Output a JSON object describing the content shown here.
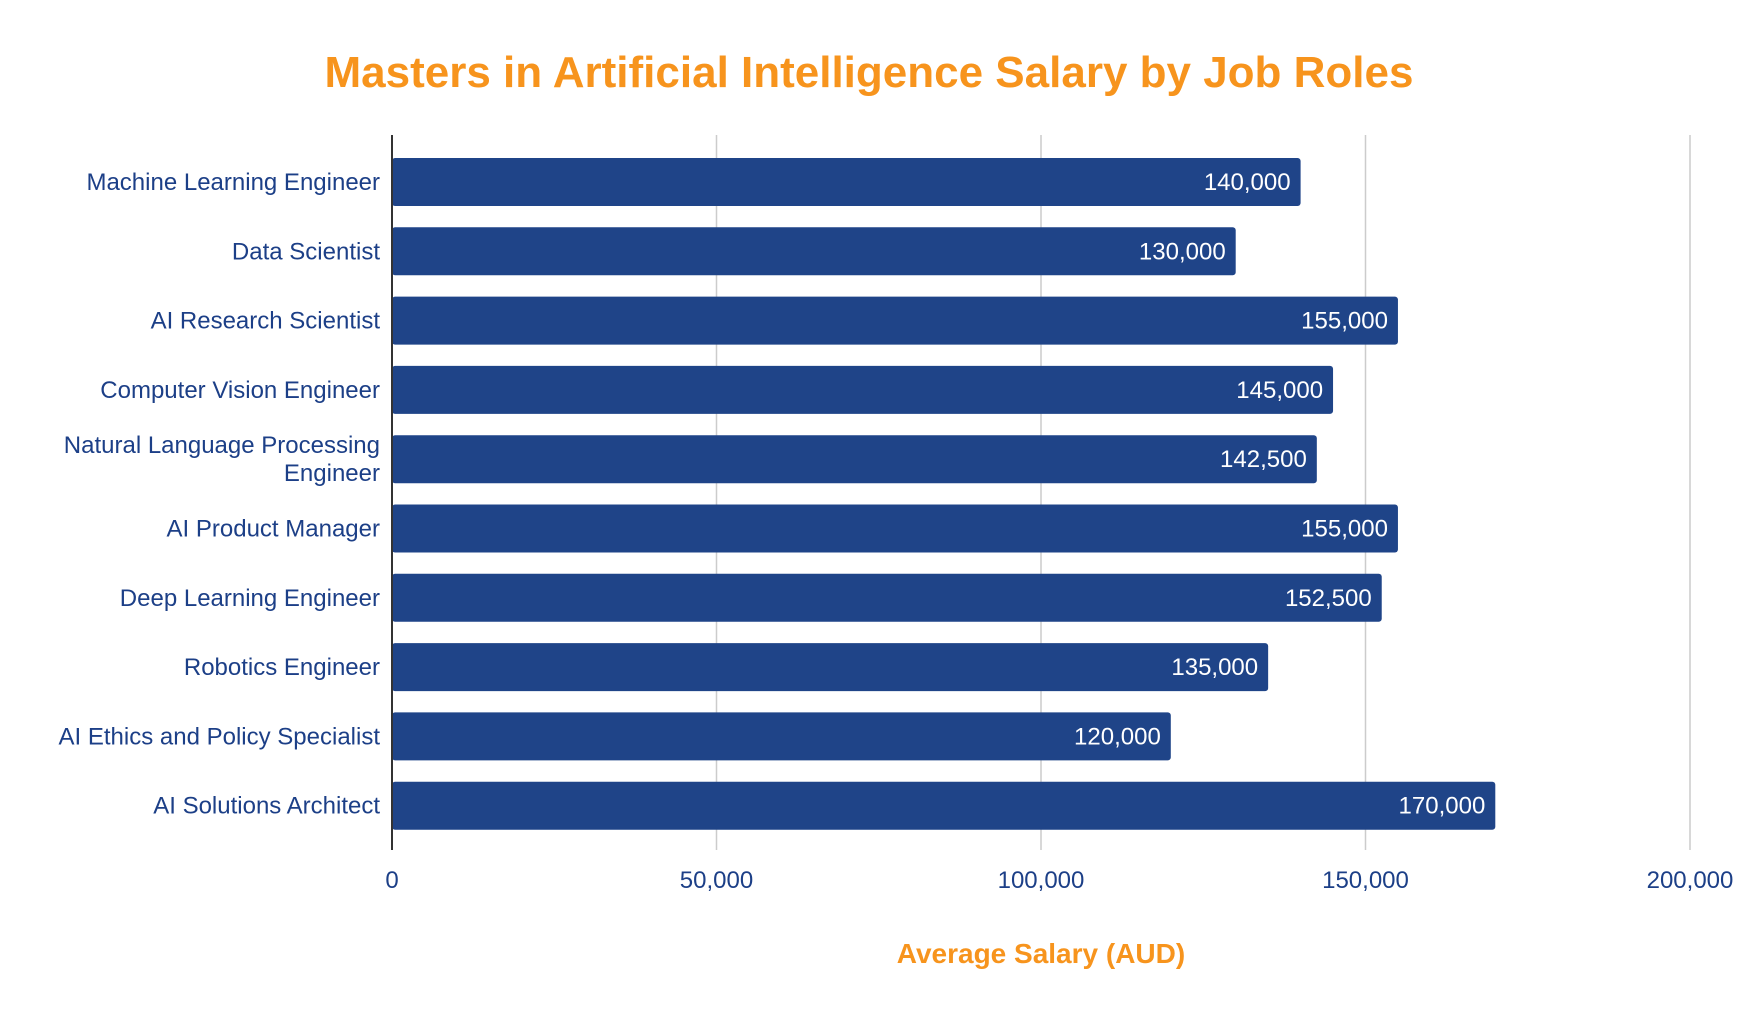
{
  "chart_data": {
    "type": "bar",
    "orientation": "horizontal",
    "title": "Masters in Artificial Intelligence Salary by Job Roles",
    "xlabel": "Average Salary (AUD)",
    "ylabel": "",
    "categories": [
      "Machine Learning Engineer",
      "Data Scientist",
      "AI Research Scientist",
      "Computer Vision Engineer",
      "Natural Language Processing Engineer",
      "AI Product Manager",
      "Deep Learning Engineer",
      "Robotics Engineer",
      "AI Ethics and Policy Specialist",
      "AI Solutions Architect"
    ],
    "values": [
      140000,
      130000,
      155000,
      145000,
      142500,
      155000,
      152500,
      135000,
      120000,
      170000
    ],
    "value_labels": [
      "140,000",
      "130,000",
      "155,000",
      "145,000",
      "142,500",
      "155,000",
      "152,500",
      "135,000",
      "120,000",
      "170,000"
    ],
    "xlim": [
      0,
      200000
    ],
    "xticks": [
      0,
      50000,
      100000,
      150000,
      200000
    ],
    "xtick_labels": [
      "0",
      "50,000",
      "100,000",
      "150,000",
      "200,000"
    ],
    "grid": "vertical",
    "legend": "none",
    "colors": {
      "bar": "#1f4488",
      "title": "#f7941d",
      "axis_title": "#f7941d",
      "labels": "#1c3f87",
      "grid": "#cccccc",
      "axis": "#333333",
      "bar_text": "#ffffff"
    }
  }
}
